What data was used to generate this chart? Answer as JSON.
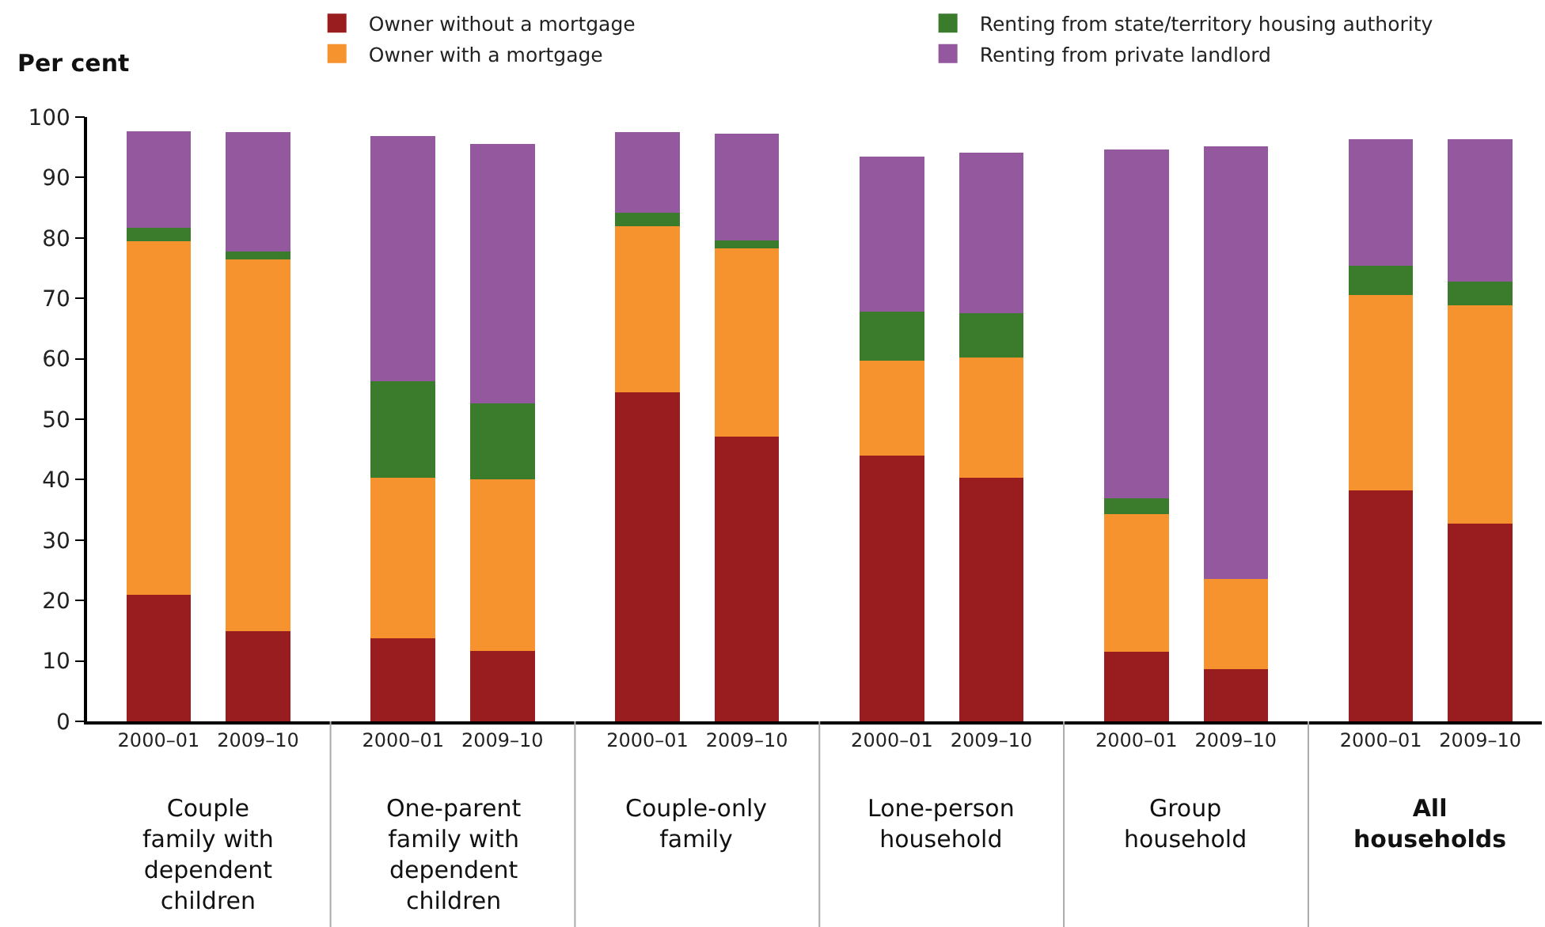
{
  "chart_data": {
    "type": "bar",
    "stacked": true,
    "ylabel": "Per cent",
    "categories": [
      "2000–01",
      "2009–10",
      "2000–01",
      "2009–10",
      "2000–01",
      "2009–10",
      "2000–01",
      "2009–10",
      "2000–01",
      "2009–10",
      "2000–01",
      "2009–10"
    ],
    "annotations": [
      "Couple\nfamily with\ndependent\nchildren",
      "One-parent\nfamily with\ndependent\nchildren",
      "Couple-only\nfamily",
      "Lone-person\nhousehold",
      "Group\nhousehold",
      "All\nhouseholds"
    ],
    "series": [
      {
        "name": "Owner without a mortgage",
        "color": "#991c1f",
        "values": [
          20.9,
          14.9,
          13.8,
          11.7,
          54.5,
          47.1,
          44.0,
          40.3,
          11.5,
          8.6,
          38.2,
          32.7
        ]
      },
      {
        "name": "Owner with a mortgage",
        "color": "#f7932f",
        "values": [
          58.5,
          61.6,
          26.5,
          28.3,
          27.5,
          31.2,
          15.7,
          19.9,
          22.8,
          14.9,
          32.3,
          36.2
        ]
      },
      {
        "name": "Renting from state/territory housing authority",
        "color": "#3a7b2c",
        "values": [
          2.3,
          1.3,
          16.0,
          12.6,
          2.1,
          1.3,
          8.1,
          7.4,
          2.6,
          null,
          4.9,
          3.9
        ]
      },
      {
        "name": "Renting from private landlord",
        "color": "#93589e",
        "values": [
          16.0,
          19.7,
          40.6,
          43.0,
          13.4,
          17.6,
          25.7,
          26.5,
          57.7,
          71.6,
          21.0,
          23.6
        ]
      }
    ],
    "ylim": [
      0,
      100
    ],
    "yticks": [
      0,
      10,
      20,
      30,
      40,
      50,
      60,
      70,
      80,
      90,
      100
    ],
    "grid": false,
    "legend": "top"
  }
}
